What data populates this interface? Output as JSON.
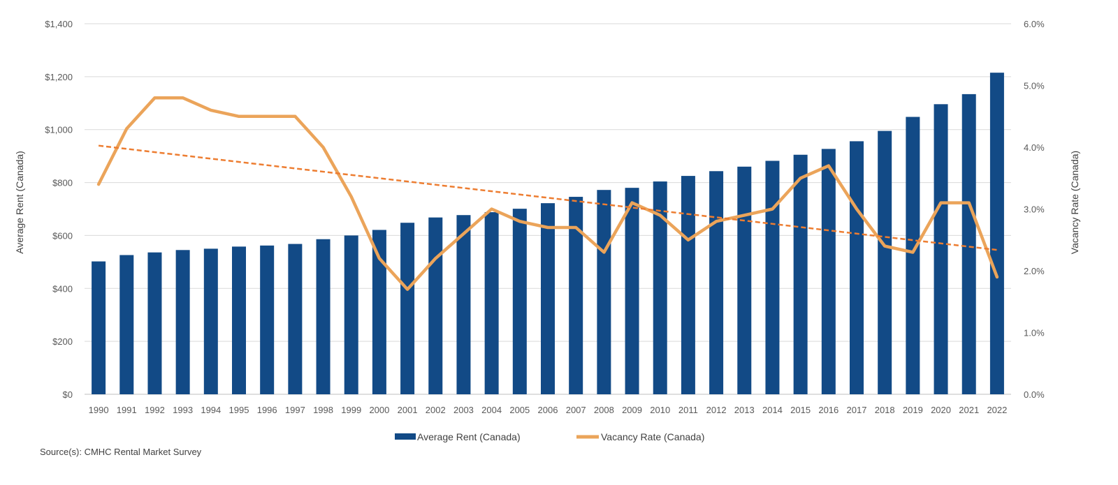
{
  "chart_data": {
    "type": "bar",
    "categories": [
      "1990",
      "1991",
      "1992",
      "1993",
      "1994",
      "1995",
      "1996",
      "1997",
      "1998",
      "1999",
      "2000",
      "2001",
      "2002",
      "2003",
      "2004",
      "2005",
      "2006",
      "2007",
      "2008",
      "2009",
      "2010",
      "2011",
      "2012",
      "2013",
      "2014",
      "2015",
      "2016",
      "2017",
      "2018",
      "2019",
      "2020",
      "2021",
      "2022"
    ],
    "series": [
      {
        "name": "Average Rent (Canada)",
        "type": "bar",
        "axis": "left",
        "color": "#124A86",
        "values": [
          502,
          526,
          536,
          545,
          550,
          558,
          562,
          568,
          586,
          600,
          621,
          648,
          668,
          677,
          688,
          701,
          722,
          746,
          772,
          780,
          804,
          825,
          843,
          860,
          882,
          905,
          927,
          956,
          995,
          1048,
          1096,
          1134,
          1215
        ]
      },
      {
        "name": "Vacancy Rate (Canada)",
        "type": "line",
        "axis": "right",
        "color": "#EBA45A",
        "values": [
          3.4,
          4.3,
          4.8,
          4.8,
          4.6,
          4.5,
          4.5,
          4.5,
          4.0,
          3.2,
          2.2,
          1.7,
          2.2,
          2.6,
          3.0,
          2.8,
          2.7,
          2.7,
          2.3,
          3.1,
          2.9,
          2.5,
          2.8,
          2.9,
          3.0,
          3.5,
          3.7,
          3.0,
          2.4,
          2.3,
          3.1,
          3.1,
          1.9
        ]
      }
    ],
    "trendline": {
      "series": "Vacancy Rate (Canada)",
      "type": "linear",
      "style": "dashed",
      "color": "#ED7D31"
    },
    "ylabel": "Average Rent (Canada)",
    "y2label": "Vacancy Rate (Canada)",
    "ylim": [
      0,
      1400
    ],
    "y2lim": [
      0,
      6.0
    ],
    "yticks": [
      "$0",
      "$200",
      "$400",
      "$600",
      "$800",
      "$1,000",
      "$1,200",
      "$1,400"
    ],
    "y2ticks": [
      "0.0%",
      "1.0%",
      "2.0%",
      "3.0%",
      "4.0%",
      "5.0%",
      "6.0%"
    ],
    "grid": true,
    "legend_position": "bottom"
  },
  "source_note": "Source(s):  CMHC Rental Market Survey"
}
